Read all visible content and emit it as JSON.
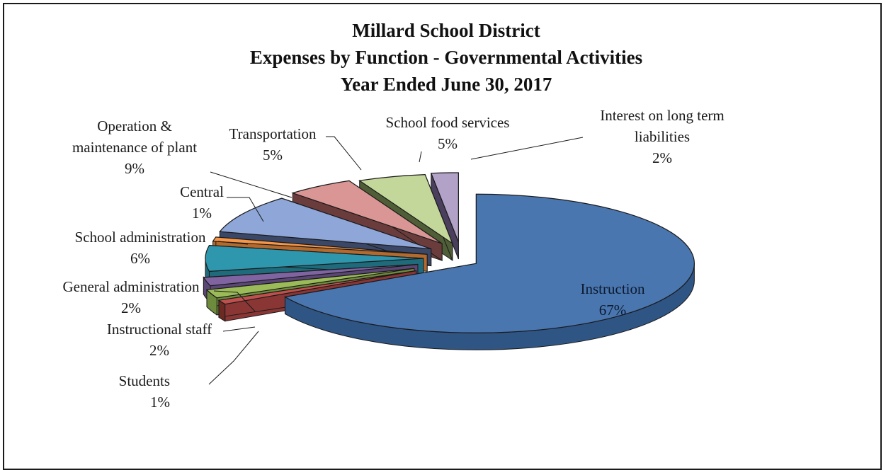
{
  "chart_data": {
    "type": "pie",
    "style": "3d-exploded",
    "title": [
      "Millard School District",
      "Expenses by Function - Governmental Activities",
      "Year Ended June 30, 2017"
    ],
    "slices": [
      {
        "key": "instruction",
        "label": "Instruction",
        "value": 67,
        "display": "67%",
        "color": "#4a76b0",
        "side_color": "#2f5585"
      },
      {
        "key": "students",
        "label": "Students",
        "value": 1,
        "display": "1%",
        "color": "#c0504d",
        "side_color": "#8a3634"
      },
      {
        "key": "instructional_staff",
        "label": "Instructional staff",
        "value": 2,
        "display": "2%",
        "color": "#9bbb59",
        "side_color": "#6e8a3c"
      },
      {
        "key": "general_administration",
        "label": "General administration",
        "value": 2,
        "display": "2%",
        "color": "#8064a2",
        "side_color": "#5b4776"
      },
      {
        "key": "school_administration",
        "label": "School administration",
        "value": 6,
        "display": "6%",
        "color": "#2f97ad",
        "side_color": "#1f6b7c"
      },
      {
        "key": "central",
        "label": "Central",
        "value": 1,
        "display": "1%",
        "color": "#f79646",
        "side_color": "#b36a2e"
      },
      {
        "key": "operation_maintenance",
        "label": "Operation &\nmaintenance of plant",
        "value": 9,
        "display": "9%",
        "color": "#8ea6d8",
        "side_color": "#3a4766"
      },
      {
        "key": "transportation",
        "label": "Transportation",
        "value": 5,
        "display": "5%",
        "color": "#d99694",
        "side_color": "#6b3c3c"
      },
      {
        "key": "school_food_services",
        "label": "School food services",
        "value": 5,
        "display": "5%",
        "color": "#c4d79b",
        "side_color": "#4f5e36"
      },
      {
        "key": "interest_long_term",
        "label": "Interest on long term\nliabilities",
        "value": 2,
        "display": "2%",
        "color": "#b3a2c7",
        "side_color": "#4a3f5c"
      }
    ],
    "extra_colors": {
      "brown_front_band": "#6b2a22"
    },
    "legend": "none"
  }
}
